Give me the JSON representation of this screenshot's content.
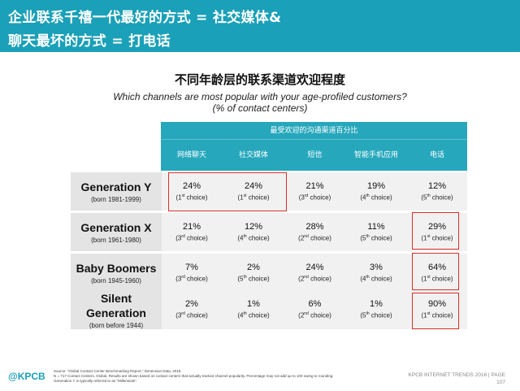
{
  "header": {
    "line1": "企业联系千禧一代最好的方式 = 社交媒体&",
    "line2": "聊天最坏的方式 = 打电话"
  },
  "title": "不同年龄层的联系渠道欢迎程度",
  "subtitle1": "Which channels are most popular with your age-profiled customers?",
  "subtitle2": "(% of contact centers)",
  "table": {
    "group_header": "最受欢迎的沟通渠道百分比",
    "columns": [
      "网络聊天",
      "社交媒体",
      "短信",
      "智能手机应用",
      "电话"
    ],
    "rows": [
      {
        "generation": "Generation Y",
        "born": "(born 1981-1999)",
        "cells": [
          {
            "pct": "24%",
            "rank": "1",
            "sup": "st",
            "suffix": "choice"
          },
          {
            "pct": "24%",
            "rank": "1",
            "sup": "st",
            "suffix": "choice"
          },
          {
            "pct": "21%",
            "rank": "3",
            "sup": "rd",
            "suffix": "choice"
          },
          {
            "pct": "19%",
            "rank": "4",
            "sup": "th",
            "suffix": "choice"
          },
          {
            "pct": "12%",
            "rank": "5",
            "sup": "th",
            "suffix": "choice"
          }
        ]
      },
      {
        "generation": "Generation X",
        "born": "(born 1961-1980)",
        "cells": [
          {
            "pct": "21%",
            "rank": "3",
            "sup": "rd",
            "suffix": "choice"
          },
          {
            "pct": "12%",
            "rank": "4",
            "sup": "th",
            "suffix": "choice"
          },
          {
            "pct": "28%",
            "rank": "2",
            "sup": "nd",
            "suffix": "choice"
          },
          {
            "pct": "11%",
            "rank": "5",
            "sup": "th",
            "suffix": "choice"
          },
          {
            "pct": "29%",
            "rank": "1",
            "sup": "st",
            "suffix": "choice"
          }
        ]
      },
      {
        "generation": "Baby Boomers",
        "born": "(born 1945-1960)",
        "cells": [
          {
            "pct": "7%",
            "rank": "3",
            "sup": "rd",
            "suffix": "choice"
          },
          {
            "pct": "2%",
            "rank": "5",
            "sup": "th",
            "suffix": "choice"
          },
          {
            "pct": "24%",
            "rank": "2",
            "sup": "nd",
            "suffix": "choice"
          },
          {
            "pct": "3%",
            "rank": "4",
            "sup": "th",
            "suffix": "choice"
          },
          {
            "pct": "64%",
            "rank": "1",
            "sup": "st",
            "suffix": "choice"
          }
        ]
      },
      {
        "generation": "Silent Generation",
        "born": "(born before 1944)",
        "cells": [
          {
            "pct": "2%",
            "rank": "3",
            "sup": "rd",
            "suffix": "choice"
          },
          {
            "pct": "1%",
            "rank": "4",
            "sup": "th",
            "suffix": "choice"
          },
          {
            "pct": "6%",
            "rank": "2",
            "sup": "nd",
            "suffix": "choice"
          },
          {
            "pct": "1%",
            "rank": "5",
            "sup": "th",
            "suffix": "choice"
          },
          {
            "pct": "90%",
            "rank": "1",
            "sup": "st",
            "suffix": "choice"
          }
        ]
      }
    ]
  },
  "footer": {
    "logo": "@KPCB",
    "source_line1": "Source: \"Global Contact Center Benchmarking Report,\" Dimension Data, 2015.",
    "source_line2": "N = 717 Contact Centers, Global. Results are shown based on contact centers that actually tracked channel popularity. Percentage may not add up to 100 owing to rounding.",
    "source_line3": "Generation Y is typically referred to as \"Millennials\".",
    "right_text": "KPCB INTERNET TRENDS 2016  |  PAGE",
    "page_number": "107"
  },
  "colors": {
    "header_bg": "#1aa0b8",
    "table_header_bg": "#26a7bc",
    "highlight_border": "#d9302b"
  }
}
